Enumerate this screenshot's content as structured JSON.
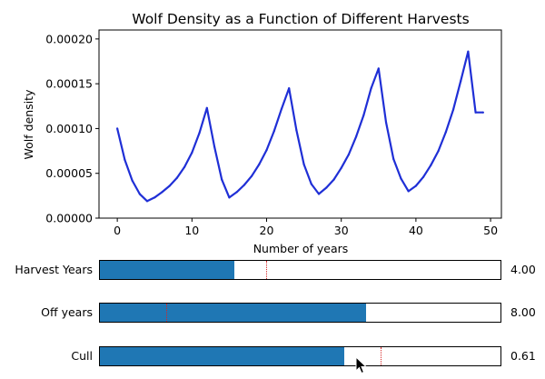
{
  "colors": {
    "line": "#1f2fd6",
    "slider_fill": "#1f77b4",
    "init_marker": "#d62728"
  },
  "chart_data": {
    "type": "line",
    "title": "Wolf Density as a Function of Different Harvests",
    "xlabel": "Number of years",
    "ylabel": "Wolf density",
    "xlim": [
      -2.45,
      51.45
    ],
    "ylim": [
      0,
      0.00021
    ],
    "xticks": [
      0,
      10,
      20,
      30,
      40,
      50
    ],
    "xtick_labels": [
      "0",
      "10",
      "20",
      "30",
      "40",
      "50"
    ],
    "yticks": [
      0,
      5e-05,
      0.0001,
      0.00015,
      0.0002
    ],
    "ytick_labels": [
      "0.00000",
      "0.00005",
      "0.00010",
      "0.00015",
      "0.00020"
    ],
    "grid": false,
    "series": [
      {
        "x": [
          0,
          1,
          2,
          3,
          4,
          5,
          6,
          7,
          8,
          9,
          10,
          11,
          12,
          13,
          14,
          15,
          16,
          17,
          18,
          19,
          20,
          21,
          22,
          23,
          24,
          25,
          26,
          27,
          28,
          29,
          30,
          31,
          32,
          33,
          34,
          35,
          36,
          37,
          38,
          39,
          40,
          41,
          42,
          43,
          44,
          45,
          46,
          47,
          48,
          49
        ],
        "y": [
          0.0001,
          6.5e-05,
          4.2e-05,
          2.7e-05,
          1.9e-05,
          2.3e-05,
          2.9e-05,
          3.6e-05,
          4.5e-05,
          5.7e-05,
          7.3e-05,
          9.5e-05,
          0.000123,
          8e-05,
          4.3e-05,
          2.3e-05,
          2.9e-05,
          3.7e-05,
          4.7e-05,
          6e-05,
          7.6e-05,
          9.7e-05,
          0.000122,
          0.000145,
          9.8e-05,
          6e-05,
          3.8e-05,
          2.7e-05,
          3.4e-05,
          4.3e-05,
          5.6e-05,
          7.1e-05,
          9.1e-05,
          0.000115,
          0.000145,
          0.000167,
          0.000107,
          6.6e-05,
          4.4e-05,
          3e-05,
          3.6e-05,
          4.6e-05,
          5.9e-05,
          7.5e-05,
          9.6e-05,
          0.000121,
          0.000153,
          0.000186,
          0.000118,
          0.000118
        ]
      }
    ]
  },
  "sliders": [
    {
      "label": "Harvest Years",
      "value_text": "4.00",
      "fill": 0.335,
      "init": 0.415
    },
    {
      "label": "Off years",
      "value_text": "8.00",
      "fill": 0.665,
      "init": 0.165
    },
    {
      "label": "Cull",
      "value_text": "0.61",
      "fill": 0.61,
      "init": 0.7
    }
  ],
  "cursor_icon": "arrow-cursor-icon"
}
